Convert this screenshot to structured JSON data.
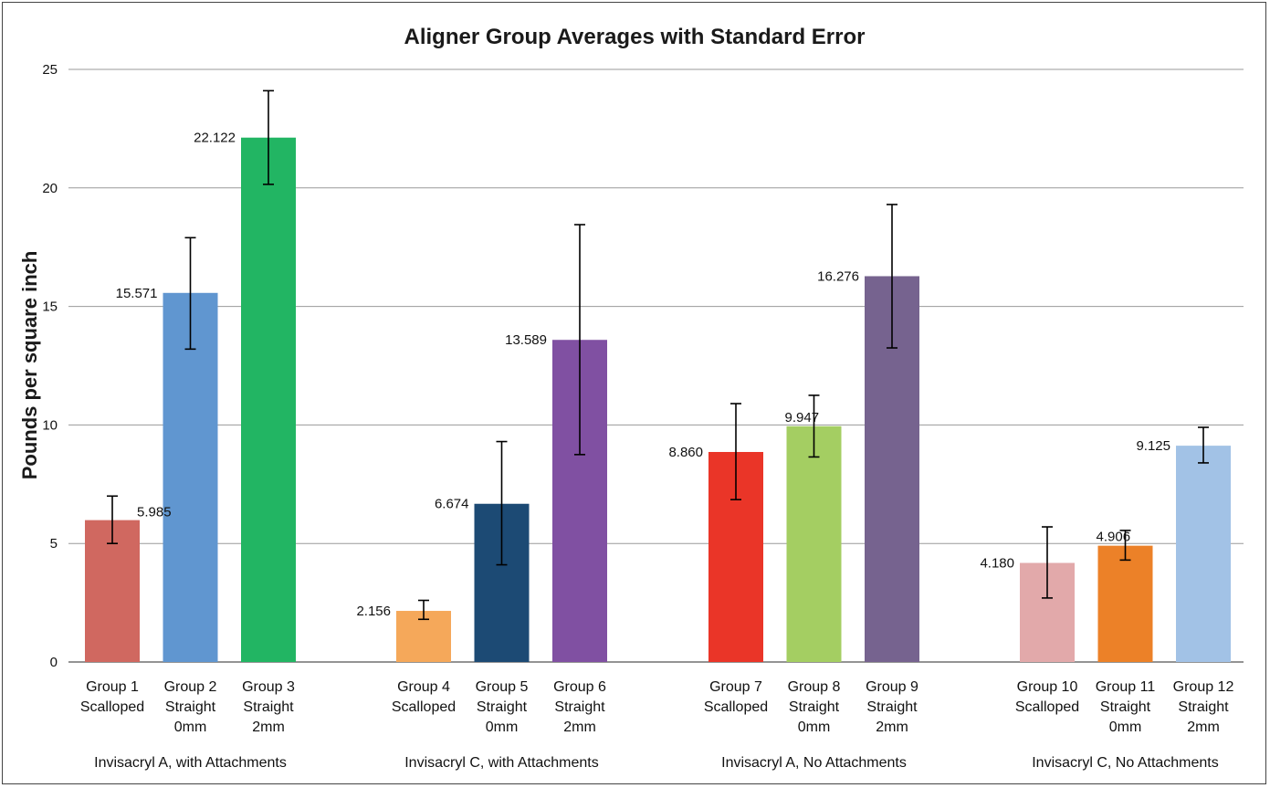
{
  "chart_data": {
    "type": "bar",
    "title": "Aligner Group Averages with Standard Error",
    "xlabel": "",
    "ylabel": "Pounds per square inch",
    "ylim": [
      0,
      25
    ],
    "yticks": [
      0,
      5,
      10,
      15,
      20,
      25
    ],
    "grid": true,
    "legend": "none",
    "groups": [
      {
        "label": "Invisacryl A, with Attachments",
        "bars": [
          {
            "name": [
              "Group 1",
              "Scalloped"
            ],
            "value": 5.985,
            "label": "5.985",
            "err_low": 5.0,
            "err_high": 7.0,
            "color": "#d06860"
          },
          {
            "name": [
              "Group 2",
              "Straight",
              "0mm"
            ],
            "value": 15.571,
            "label": "15.571",
            "err_low": 13.2,
            "err_high": 17.9,
            "color": "#6096d0"
          },
          {
            "name": [
              "Group 3",
              "Straight",
              "2mm"
            ],
            "value": 22.122,
            "label": "22.122",
            "err_low": 20.15,
            "err_high": 24.1,
            "color": "#22b563"
          }
        ]
      },
      {
        "label": "Invisacryl C, with Attachments",
        "bars": [
          {
            "name": [
              "Group 4",
              "Scalloped"
            ],
            "value": 2.156,
            "label": "2.156",
            "err_low": 1.8,
            "err_high": 2.6,
            "color": "#f5a85a"
          },
          {
            "name": [
              "Group 5",
              "Straight",
              "0mm"
            ],
            "value": 6.674,
            "label": "6.674",
            "err_low": 4.1,
            "err_high": 9.3,
            "color": "#1c4a74"
          },
          {
            "name": [
              "Group 6",
              "Straight",
              "2mm"
            ],
            "value": 13.589,
            "label": "13.589",
            "err_low": 8.75,
            "err_high": 18.45,
            "color": "#8050a2"
          }
        ]
      },
      {
        "label": "Invisacryl A, No Attachments",
        "bars": [
          {
            "name": [
              "Group 7",
              "Scalloped"
            ],
            "value": 8.86,
            "label": "8.860",
            "err_low": 6.85,
            "err_high": 10.9,
            "color": "#ea3528"
          },
          {
            "name": [
              "Group 8",
              "Straight",
              "0mm"
            ],
            "value": 9.947,
            "label": "9.947",
            "err_low": 8.65,
            "err_high": 11.25,
            "color": "#a4ce62"
          },
          {
            "name": [
              "Group 9",
              "Straight",
              "2mm"
            ],
            "value": 16.276,
            "label": "16.276",
            "err_low": 13.25,
            "err_high": 19.3,
            "color": "#76638f"
          }
        ]
      },
      {
        "label": "Invisacryl C, No Attachments",
        "bars": [
          {
            "name": [
              "Group 10",
              "Scalloped"
            ],
            "value": 4.18,
            "label": "4.180",
            "err_low": 2.7,
            "err_high": 5.7,
            "color": "#e2a9aa"
          },
          {
            "name": [
              "Group 11",
              "Straight",
              "0mm"
            ],
            "value": 4.906,
            "label": "4.906",
            "err_low": 4.3,
            "err_high": 5.55,
            "color": "#ec8128"
          },
          {
            "name": [
              "Group 12",
              "Straight",
              "2mm"
            ],
            "value": 9.125,
            "label": "9.125",
            "err_low": 8.4,
            "err_high": 9.9,
            "color": "#a2c2e6"
          }
        ]
      }
    ]
  }
}
